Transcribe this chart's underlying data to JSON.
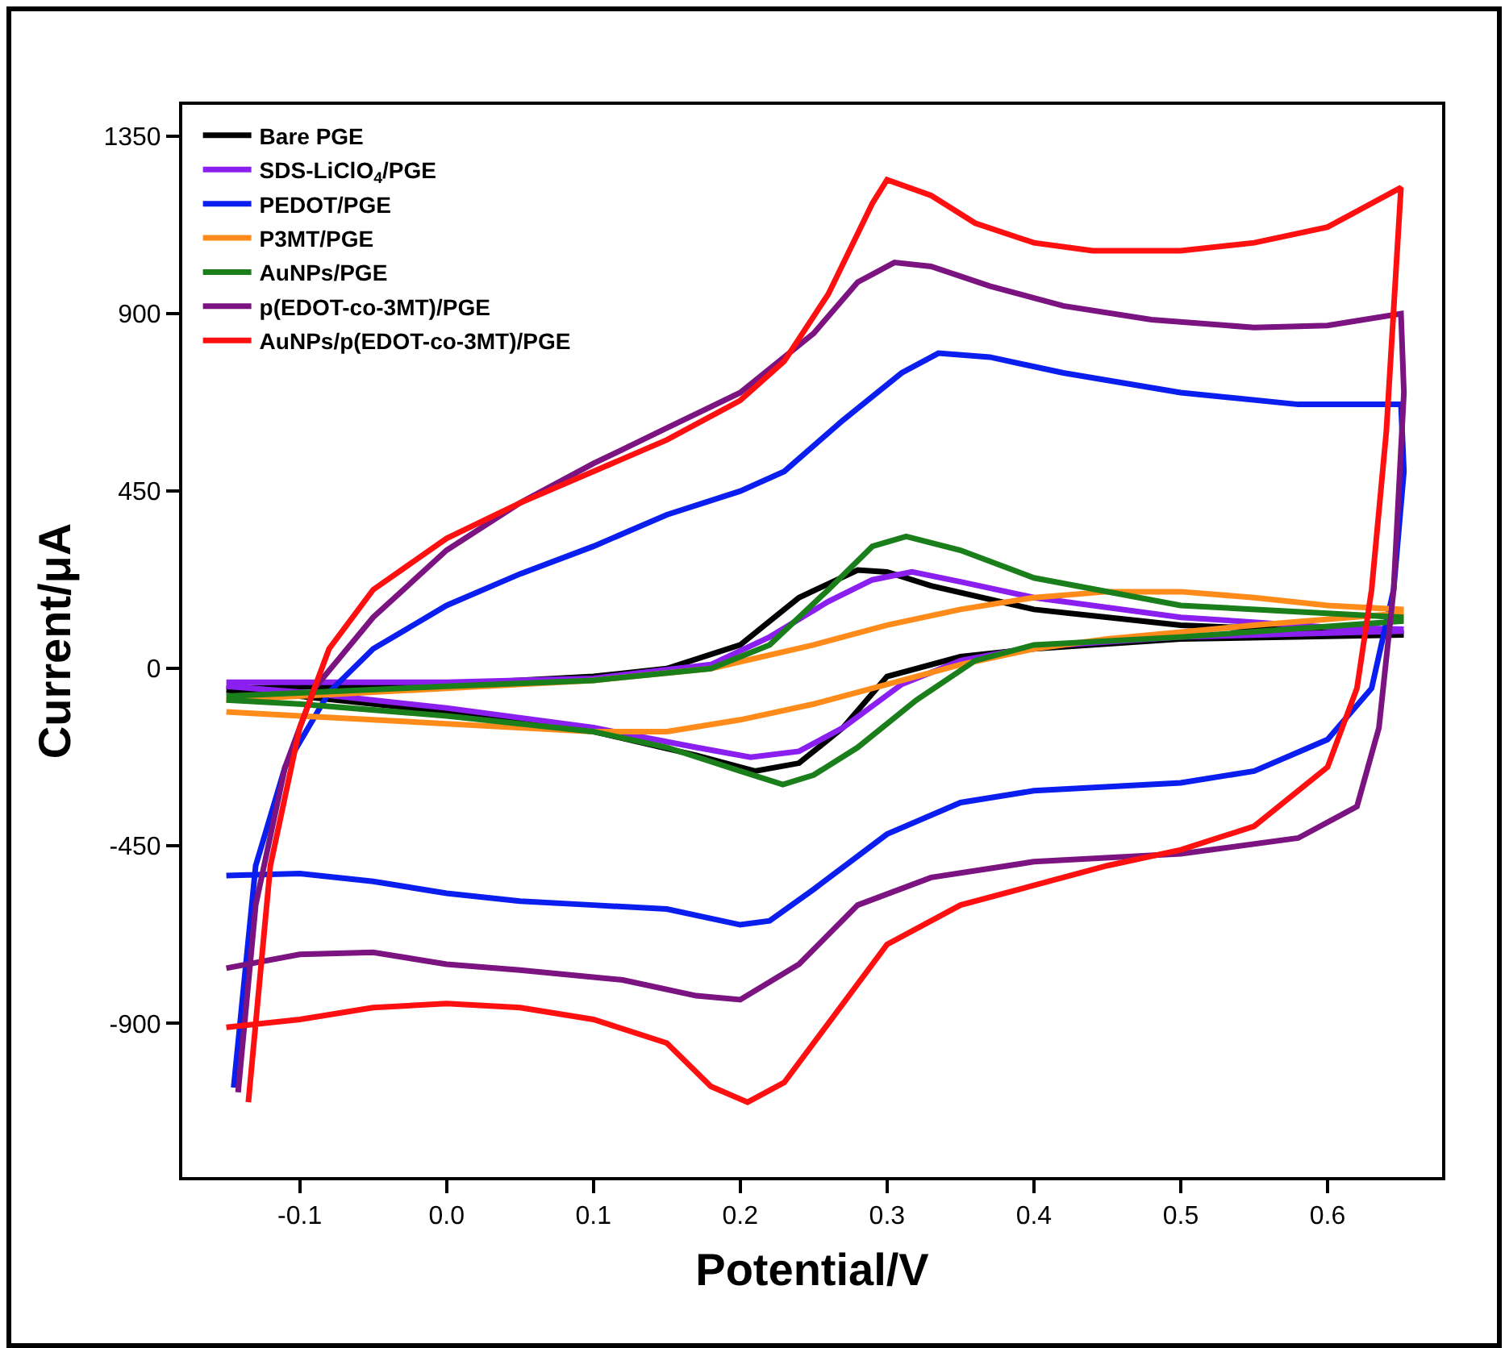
{
  "chart_data": {
    "type": "line",
    "xlabel": "Potential/V",
    "ylabel": "Current/μA",
    "xlim": [
      -0.18,
      0.678
    ],
    "ylim": [
      -1290,
      1430
    ],
    "xticks": [
      -0.1,
      {
        "value": 0,
        "label": "0.0"
      },
      0.1,
      0.2,
      0.3,
      0.4,
      0.5,
      0.6
    ],
    "yticks": [
      -900,
      -450,
      0,
      450,
      900,
      1350
    ],
    "grid": false,
    "legend": "top left",
    "marker": "none",
    "line_style": "solid",
    "series": [
      {
        "name": "Bare PGE",
        "color": "#000000",
        "x": [
          -0.15,
          0.0,
          0.1,
          0.15,
          0.2,
          0.24,
          0.28,
          0.3,
          0.33,
          0.4,
          0.5,
          0.6,
          0.65,
          0.65,
          0.5,
          0.4,
          0.35,
          0.3,
          0.27,
          0.24,
          0.21,
          0.17,
          0.1,
          0.0,
          -0.1,
          -0.15
        ],
        "values": [
          -50,
          -40,
          -20,
          0,
          60,
          180,
          250,
          245,
          210,
          150,
          110,
          95,
          90,
          85,
          75,
          50,
          30,
          -20,
          -150,
          -240,
          -260,
          -220,
          -160,
          -110,
          -70,
          -55
        ]
      },
      {
        "name": "SDS-LiClO$_{4}$/PGE",
        "color": "#8b1ff0",
        "x": [
          -0.15,
          0.0,
          0.1,
          0.18,
          0.22,
          0.26,
          0.29,
          0.317,
          0.35,
          0.4,
          0.5,
          0.6,
          0.65,
          0.65,
          0.5,
          0.4,
          0.35,
          0.31,
          0.27,
          0.24,
          0.207,
          0.17,
          0.1,
          0.0,
          -0.1,
          -0.15
        ],
        "values": [
          -35,
          -35,
          -25,
          10,
          80,
          170,
          225,
          245,
          220,
          180,
          130,
          105,
          100,
          95,
          80,
          55,
          20,
          -40,
          -150,
          -210,
          -225,
          -200,
          -150,
          -100,
          -60,
          -45
        ]
      },
      {
        "name": "PEDOT/PGE",
        "color": "#0b1ef0",
        "x": [
          -0.145,
          -0.13,
          -0.11,
          -0.08,
          -0.05,
          0.0,
          0.05,
          0.1,
          0.15,
          0.2,
          0.23,
          0.27,
          0.31,
          0.335,
          0.37,
          0.42,
          0.5,
          0.58,
          0.65,
          0.652,
          0.645,
          0.63,
          0.6,
          0.55,
          0.5,
          0.4,
          0.35,
          0.3,
          0.25,
          0.22,
          0.2,
          0.15,
          0.1,
          0.05,
          0.0,
          -0.05,
          -0.1,
          -0.15
        ],
        "values": [
          -1063,
          -500,
          -250,
          -60,
          50,
          160,
          240,
          310,
          390,
          450,
          500,
          630,
          750,
          800,
          790,
          750,
          700,
          670,
          670,
          500,
          200,
          -50,
          -180,
          -260,
          -290,
          -310,
          -340,
          -420,
          -560,
          -640,
          -650,
          -610,
          -600,
          -590,
          -570,
          -540,
          -520,
          -525
        ]
      },
      {
        "name": "P3MT/PGE",
        "color": "#ff8c1a",
        "x": [
          -0.15,
          0.0,
          0.1,
          0.18,
          0.25,
          0.3,
          0.35,
          0.4,
          0.45,
          0.5,
          0.55,
          0.6,
          0.65,
          0.65,
          0.55,
          0.45,
          0.4,
          0.35,
          0.3,
          0.25,
          0.2,
          0.15,
          0.1,
          0.0,
          -0.1,
          -0.15
        ],
        "values": [
          -80,
          -50,
          -30,
          0,
          60,
          110,
          150,
          180,
          195,
          195,
          180,
          160,
          150,
          140,
          110,
          75,
          50,
          10,
          -40,
          -90,
          -130,
          -160,
          -160,
          -140,
          -120,
          -110
        ]
      },
      {
        "name": "AuNPs/PGE",
        "color": "#1a7f1a",
        "x": [
          -0.15,
          0.0,
          0.1,
          0.18,
          0.22,
          0.26,
          0.29,
          0.313,
          0.35,
          0.4,
          0.5,
          0.6,
          0.65,
          0.65,
          0.5,
          0.4,
          0.36,
          0.32,
          0.28,
          0.25,
          0.229,
          0.2,
          0.15,
          0.1,
          0.0,
          -0.1,
          -0.15
        ],
        "values": [
          -70,
          -45,
          -30,
          0,
          60,
          200,
          310,
          335,
          300,
          230,
          160,
          140,
          130,
          120,
          80,
          60,
          20,
          -80,
          -200,
          -270,
          -294,
          -260,
          -200,
          -160,
          -120,
          -90,
          -80
        ]
      },
      {
        "name": "p(EDOT-co-3MT)/PGE",
        "color": "#7b1380",
        "x": [
          -0.142,
          -0.13,
          -0.11,
          -0.09,
          -0.05,
          0.0,
          0.05,
          0.1,
          0.15,
          0.2,
          0.25,
          0.28,
          0.305,
          0.33,
          0.37,
          0.42,
          0.48,
          0.55,
          0.6,
          0.65,
          0.652,
          0.645,
          0.635,
          0.62,
          0.58,
          0.5,
          0.4,
          0.33,
          0.28,
          0.24,
          0.2,
          0.17,
          0.12,
          0.05,
          0.0,
          -0.05,
          -0.1,
          -0.15
        ],
        "values": [
          -1075,
          -600,
          -250,
          -50,
          130,
          300,
          420,
          520,
          610,
          700,
          850,
          980,
          1030,
          1020,
          970,
          920,
          885,
          865,
          870,
          900,
          700,
          200,
          -150,
          -350,
          -430,
          -470,
          -490,
          -530,
          -600,
          -750,
          -840,
          -830,
          -790,
          -765,
          -750,
          -720,
          -725,
          -760
        ]
      },
      {
        "name": "AuNPs/p(EDOT-co-3MT)/PGE",
        "color": "#ff1010",
        "x": [
          -0.135,
          -0.12,
          -0.1,
          -0.08,
          -0.05,
          0.0,
          0.05,
          0.1,
          0.15,
          0.2,
          0.23,
          0.26,
          0.29,
          0.3,
          0.33,
          0.36,
          0.4,
          0.44,
          0.5,
          0.55,
          0.6,
          0.65,
          0.64,
          0.63,
          0.62,
          0.6,
          0.55,
          0.5,
          0.45,
          0.4,
          0.35,
          0.3,
          0.26,
          0.23,
          0.205,
          0.18,
          0.15,
          0.1,
          0.05,
          0.0,
          -0.05,
          -0.1,
          -0.15
        ],
        "values": [
          -1100,
          -500,
          -150,
          50,
          200,
          330,
          420,
          500,
          580,
          680,
          780,
          950,
          1180,
          1240,
          1200,
          1130,
          1080,
          1060,
          1060,
          1080,
          1120,
          1220,
          600,
          200,
          -50,
          -250,
          -400,
          -460,
          -500,
          -550,
          -600,
          -700,
          -900,
          -1050,
          -1100,
          -1060,
          -950,
          -890,
          -860,
          -850,
          -860,
          -890,
          -910
        ]
      }
    ]
  }
}
